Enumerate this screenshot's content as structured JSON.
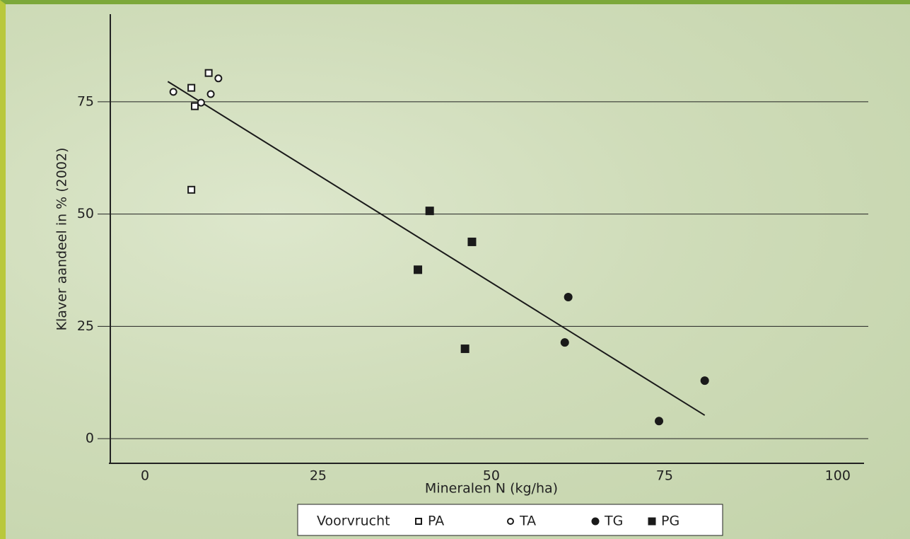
{
  "chart_data": {
    "type": "scatter",
    "xlabel": "Mineralen N (kg/ha)",
    "ylabel": "Klaver aandeel in % (2002)",
    "xlim": [
      -5,
      104
    ],
    "xticks": [
      0,
      25,
      50,
      75,
      100
    ],
    "ylim": [
      -5.5,
      94.5
    ],
    "yticks": [
      0,
      25,
      50,
      75
    ],
    "grid": true,
    "legend_title": "Voorvrucht",
    "legend": "bottom",
    "series": [
      {
        "name": "PA",
        "color": "#1a1a1a",
        "marker": "square",
        "filled": false,
        "x": [
          6.7,
          9.2,
          7.2,
          6.7
        ],
        "values": [
          78.1,
          81.4,
          74.0,
          55.4
        ]
      },
      {
        "name": "TA",
        "color": "#1a1a1a",
        "marker": "circle",
        "filled": false,
        "x": [
          4.1,
          8.1,
          9.5,
          10.6
        ],
        "values": [
          77.2,
          74.8,
          76.7,
          80.2
        ]
      },
      {
        "name": "TG",
        "color": "#1a1a1a",
        "marker": "circle",
        "filled": true,
        "x": [
          61.1,
          60.6,
          80.8,
          74.2
        ],
        "values": [
          31.5,
          21.4,
          12.9,
          3.9
        ]
      },
      {
        "name": "PG",
        "color": "#1a1a1a",
        "marker": "square",
        "filled": true,
        "x": [
          41.1,
          47.2,
          39.4,
          46.2
        ],
        "values": [
          50.7,
          43.8,
          37.6,
          20.0
        ]
      }
    ],
    "trendline": {
      "color": "#1a1a1a",
      "x": [
        3.3,
        80.8
      ],
      "values": [
        79.5,
        5.2
      ]
    }
  }
}
